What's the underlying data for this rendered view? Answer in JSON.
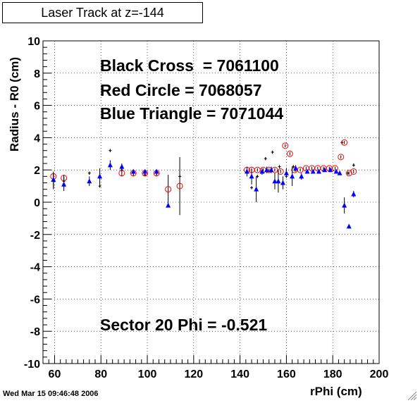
{
  "page": {
    "title": "Laser Track at z=-144",
    "timestamp": "Wed Mar 15 09:46:48 2006",
    "annotations": {
      "black": "Black Cross  = 7061100",
      "red": "Red Circle = 7068057",
      "blue": "Blue Triangle = 7071044",
      "sector": "Sector 20 Phi = -0.521"
    },
    "colors": {
      "black": "#000000",
      "red": "#ff0000",
      "blue": "#0000ff"
    }
  },
  "chart_data": {
    "type": "scatter",
    "title": "Laser Track at z=-144",
    "xlabel": "rPhi (cm)",
    "ylabel": "Radius - R0 (cm)",
    "xlim": [
      55,
      200
    ],
    "ylim": [
      -10,
      10
    ],
    "xticks": [
      60,
      80,
      100,
      120,
      140,
      160,
      180,
      200
    ],
    "yticks": [
      -10,
      -8,
      -6,
      -4,
      -2,
      0,
      2,
      4,
      6,
      8,
      10
    ],
    "grid": true,
    "series": [
      {
        "name": "Black Cross",
        "marker": "cross",
        "color": "#000000",
        "points": [
          {
            "x": 59.5,
            "y": 1.3,
            "err": 0.5
          },
          {
            "x": 64,
            "y": 1.3,
            "err": 0.4
          },
          {
            "x": 75,
            "y": 1.8,
            "err": 0.1
          },
          {
            "x": 79.5,
            "y": 1.0,
            "err": 0.1
          },
          {
            "x": 84,
            "y": 3.2,
            "err": 0.1
          },
          {
            "x": 89,
            "y": 2.0,
            "err": 0.1
          },
          {
            "x": 94,
            "y": 1.8,
            "err": 0.1
          },
          {
            "x": 99,
            "y": 1.7,
            "err": 0.1
          },
          {
            "x": 104,
            "y": 1.8,
            "err": 0.1
          },
          {
            "x": 114,
            "y": 1.6,
            "err": 0.1
          },
          {
            "x": 143,
            "y": 1.8,
            "err": 0.1
          },
          {
            "x": 145,
            "y": 0.9,
            "err": 0.1
          },
          {
            "x": 147.5,
            "y": 1.6,
            "err": 0.1
          },
          {
            "x": 151,
            "y": 2.7,
            "err": 0.1
          },
          {
            "x": 154,
            "y": 3.1,
            "err": 0.1
          },
          {
            "x": 157,
            "y": 2.2,
            "err": 0.1
          },
          {
            "x": 160,
            "y": 1.6,
            "err": 0.1
          },
          {
            "x": 163,
            "y": 2.2,
            "err": 0.1
          },
          {
            "x": 184,
            "y": 3.7,
            "err": 0.1
          },
          {
            "x": 186.5,
            "y": 1.8,
            "err": 0.1
          },
          {
            "x": 189,
            "y": 2.3,
            "err": 0.1
          }
        ]
      },
      {
        "name": "Red Circle",
        "marker": "open-circle",
        "color": "#ff0000",
        "points": [
          {
            "x": 59.5,
            "y": 1.6,
            "err": 0.2
          },
          {
            "x": 64,
            "y": 1.5,
            "err": 0.2
          },
          {
            "x": 89,
            "y": 1.8,
            "err": 0.2
          },
          {
            "x": 94,
            "y": 1.8,
            "err": 0.2
          },
          {
            "x": 99,
            "y": 1.8,
            "err": 0.2
          },
          {
            "x": 104,
            "y": 1.8,
            "err": 0.2
          },
          {
            "x": 109,
            "y": 0.8,
            "err": 0.9
          },
          {
            "x": 114,
            "y": 1.0,
            "err": 1.8
          },
          {
            "x": 143,
            "y": 2.0,
            "err": 0.1
          },
          {
            "x": 145,
            "y": 2.0,
            "err": 0.1
          },
          {
            "x": 147.5,
            "y": 2.0,
            "err": 0.1
          },
          {
            "x": 150,
            "y": 2.0,
            "err": 0.1
          },
          {
            "x": 152.5,
            "y": 2.0,
            "err": 0.1
          },
          {
            "x": 155,
            "y": 2.0,
            "err": 0.1
          },
          {
            "x": 157.5,
            "y": 1.9,
            "err": 0.1
          },
          {
            "x": 159.5,
            "y": 3.5,
            "err": 0.1
          },
          {
            "x": 161.5,
            "y": 3.0,
            "err": 0.1
          },
          {
            "x": 163.5,
            "y": 2.0,
            "err": 0.1
          },
          {
            "x": 166,
            "y": 2.0,
            "err": 0.1
          },
          {
            "x": 168.5,
            "y": 2.1,
            "err": 0.1
          },
          {
            "x": 171,
            "y": 2.1,
            "err": 0.1
          },
          {
            "x": 173.5,
            "y": 2.1,
            "err": 0.1
          },
          {
            "x": 176,
            "y": 2.1,
            "err": 0.1
          },
          {
            "x": 178.5,
            "y": 2.1,
            "err": 0.1
          },
          {
            "x": 181,
            "y": 2.1,
            "err": 0.1
          },
          {
            "x": 183.5,
            "y": 2.8,
            "err": 0.1
          },
          {
            "x": 185,
            "y": 3.7,
            "err": 0.1
          },
          {
            "x": 187,
            "y": 1.8,
            "err": 0.1
          },
          {
            "x": 189,
            "y": 1.9,
            "err": 0.1
          }
        ]
      },
      {
        "name": "Blue Triangle",
        "marker": "triangle",
        "color": "#0000ff",
        "points": [
          {
            "x": 59.5,
            "y": 1.4,
            "err": 0.5
          },
          {
            "x": 64,
            "y": 1.1,
            "err": 0.4
          },
          {
            "x": 75,
            "y": 1.3,
            "err": 0.3
          },
          {
            "x": 79.5,
            "y": 1.6,
            "err": 0.5
          },
          {
            "x": 84,
            "y": 2.3,
            "err": 0.3
          },
          {
            "x": 89,
            "y": 2.2,
            "err": 0.2
          },
          {
            "x": 94,
            "y": 1.9,
            "err": 0.1
          },
          {
            "x": 99,
            "y": 1.9,
            "err": 0.1
          },
          {
            "x": 104,
            "y": 1.9,
            "err": 0.1
          },
          {
            "x": 109,
            "y": -0.2,
            "err": 0.1
          },
          {
            "x": 143,
            "y": 1.9,
            "err": 0.3
          },
          {
            "x": 145,
            "y": 1.6,
            "err": 0.5
          },
          {
            "x": 147,
            "y": 0.8,
            "err": 0.8
          },
          {
            "x": 149.5,
            "y": 1.9,
            "err": 0.2
          },
          {
            "x": 151.5,
            "y": 2.0,
            "err": 0.2
          },
          {
            "x": 153.5,
            "y": 2.0,
            "err": 0.2
          },
          {
            "x": 155,
            "y": 1.3,
            "err": 0.5
          },
          {
            "x": 156.5,
            "y": 1.3,
            "err": 0.7
          },
          {
            "x": 158.5,
            "y": 1.2,
            "err": 0.4
          },
          {
            "x": 160,
            "y": 1.8,
            "err": 0.3
          },
          {
            "x": 162.5,
            "y": 1.6,
            "err": 0.6
          },
          {
            "x": 164,
            "y": 2.1,
            "err": 0.2
          },
          {
            "x": 166.5,
            "y": 1.6,
            "err": 0.2
          },
          {
            "x": 169,
            "y": 1.9,
            "err": 0.1
          },
          {
            "x": 171.5,
            "y": 1.9,
            "err": 0.1
          },
          {
            "x": 174,
            "y": 1.9,
            "err": 0.1
          },
          {
            "x": 176.5,
            "y": 2.0,
            "err": 0.1
          },
          {
            "x": 179,
            "y": 2.0,
            "err": 0.1
          },
          {
            "x": 181.5,
            "y": 1.9,
            "err": 0.1
          },
          {
            "x": 183,
            "y": 1.8,
            "err": 0.1
          },
          {
            "x": 185,
            "y": -0.2,
            "err": 0.5
          },
          {
            "x": 187,
            "y": -1.5,
            "err": 0.1
          },
          {
            "x": 189,
            "y": 0.5,
            "err": 0.2
          }
        ]
      }
    ]
  }
}
